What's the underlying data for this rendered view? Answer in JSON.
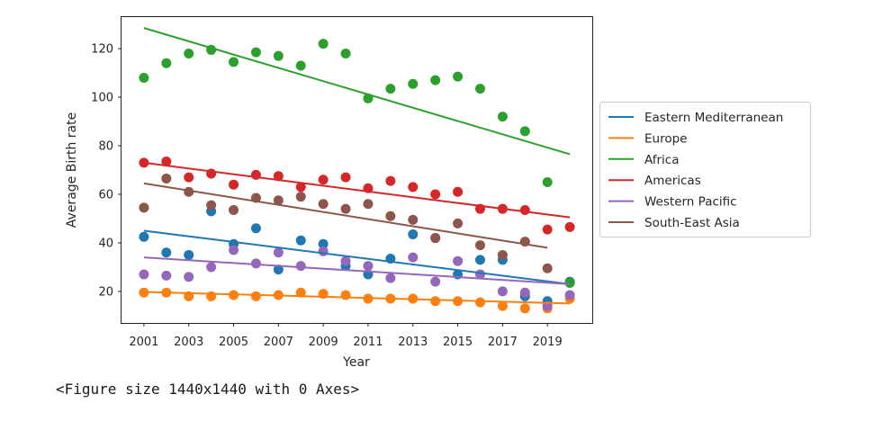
{
  "output_text": "<Figure size 1440x1440 with 0 Axes>",
  "chart_data": {
    "type": "scatter",
    "title": "",
    "xlabel": "Year",
    "ylabel": "Average Birth rate",
    "xlim": [
      2000,
      2021
    ],
    "ylim": [
      7,
      133
    ],
    "xticks": [
      2001,
      2003,
      2005,
      2007,
      2009,
      2011,
      2013,
      2015,
      2017,
      2019
    ],
    "yticks": [
      20,
      40,
      60,
      80,
      100,
      120
    ],
    "legend_placement": "right, outside axes",
    "x": [
      2001,
      2002,
      2003,
      2004,
      2005,
      2006,
      2007,
      2008,
      2009,
      2010,
      2011,
      2012,
      2013,
      2014,
      2015,
      2016,
      2017,
      2018,
      2019,
      2020
    ],
    "series": [
      {
        "name": "Eastern Mediterranean",
        "color": "#1f77b4",
        "values": [
          42.5,
          36,
          35,
          53,
          39.5,
          46,
          29,
          41,
          39.5,
          30.5,
          27,
          33.5,
          43.5,
          42,
          27,
          33,
          33,
          18,
          16,
          24
        ],
        "trend": [
          45,
          23
        ]
      },
      {
        "name": "Europe",
        "color": "#ff7f0e",
        "values": [
          19.5,
          19.5,
          18,
          18,
          18.5,
          18,
          18.5,
          19.5,
          19,
          18.5,
          17,
          17,
          17,
          16,
          16,
          15.5,
          14,
          13,
          13,
          17
        ],
        "trend": [
          19.8,
          15
        ]
      },
      {
        "name": "Africa",
        "color": "#2ca02c",
        "values": [
          108,
          114,
          118,
          119.5,
          114.5,
          118.5,
          117,
          113,
          122,
          118,
          99.5,
          103.5,
          105.5,
          107,
          108.5,
          103.5,
          92,
          86,
          65,
          23.5
        ],
        "trend": [
          128.5,
          76.5
        ]
      },
      {
        "name": "Americas",
        "color": "#d62728",
        "values": [
          73,
          73.5,
          67,
          68.5,
          64,
          68,
          67.5,
          63,
          66,
          67,
          62.5,
          65.5,
          63,
          60,
          61,
          54,
          54,
          53.5,
          45.5,
          46.5
        ],
        "trend": [
          73,
          50.5
        ]
      },
      {
        "name": "Western Pacific",
        "color": "#9467bd",
        "values": [
          27,
          26.5,
          26,
          30,
          37,
          31.5,
          36,
          30.5,
          36.5,
          32.5,
          30.5,
          25.5,
          34,
          24,
          32.5,
          27,
          20,
          19.5,
          14,
          18.5
        ],
        "trend": [
          34,
          23
        ]
      },
      {
        "name": "South-East Asia",
        "color": "#8c564b",
        "values": [
          54.5,
          66.5,
          61,
          55.5,
          53.5,
          58.5,
          57.5,
          59,
          56,
          54,
          56,
          51,
          49.5,
          42,
          48,
          39,
          35,
          40.5,
          29.5,
          null
        ],
        "trend": [
          64.5,
          38
        ],
        "trend_x": [
          2001,
          2019
        ]
      }
    ]
  }
}
